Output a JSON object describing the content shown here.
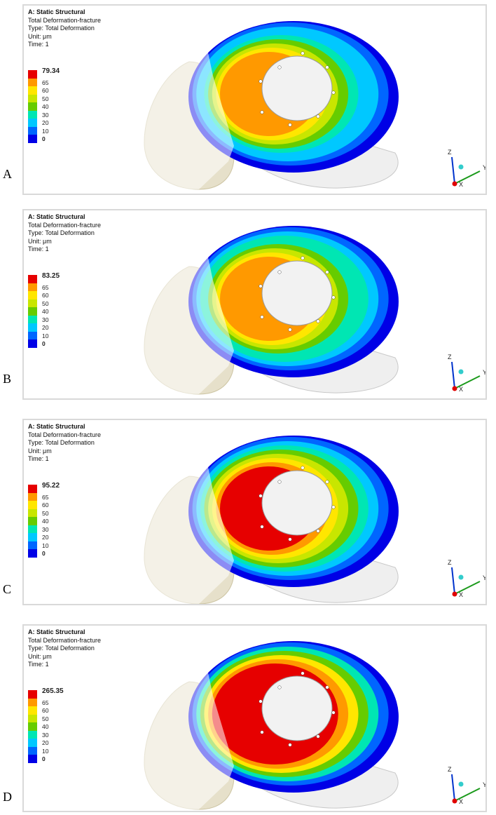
{
  "panels": [
    {
      "letter": "A",
      "header": {
        "title": "A: Static Structural",
        "result": "Total Deformation-fracture",
        "type": "Type: Total Deformation",
        "unit": "Unit: μm",
        "time": "Time: 1"
      },
      "legend": {
        "max": "79.34",
        "levels": [
          "65",
          "60",
          "50",
          "40",
          "30",
          "20",
          "10"
        ],
        "min": "0"
      },
      "max_level": 0.3
    },
    {
      "letter": "B",
      "header": {
        "title": "A: Static Structural",
        "result": "Total Deformation-fracture",
        "type": "Type: Total Deformation",
        "unit": "Unit: μm",
        "time": "Time: 1"
      },
      "legend": {
        "max": "83.25",
        "levels": [
          "65",
          "60",
          "50",
          "40",
          "30",
          "20",
          "10"
        ],
        "min": "0"
      },
      "max_level": 0.34
    },
    {
      "letter": "C",
      "header": {
        "title": "A: Static Structural",
        "result": "Total Deformation-fracture",
        "type": "Type: Total Deformation",
        "unit": "Unit: μm",
        "time": "Time: 1"
      },
      "legend": {
        "max": "95.22",
        "levels": [
          "65",
          "60",
          "50",
          "40",
          "30",
          "20",
          "10"
        ],
        "min": "0"
      },
      "max_level": 0.45
    },
    {
      "letter": "D",
      "header": {
        "title": "A: Static Structural",
        "result": "Total Deformation-fracture",
        "type": "Type: Total Deformation",
        "unit": "Unit: μm",
        "time": "Time: 1"
      },
      "legend": {
        "max": "265.35",
        "levels": [
          "65",
          "60",
          "50",
          "40",
          "30",
          "20",
          "10"
        ],
        "min": "0"
      },
      "max_level": 1.0
    }
  ],
  "legend_colors": [
    "#e60000",
    "#ff9900",
    "#ffe600",
    "#c8e600",
    "#66cc00",
    "#00e6b3",
    "#00c8ff",
    "#0066ff",
    "#0000e6"
  ],
  "triad": {
    "z": "Z",
    "y": "Y",
    "x": "X"
  }
}
